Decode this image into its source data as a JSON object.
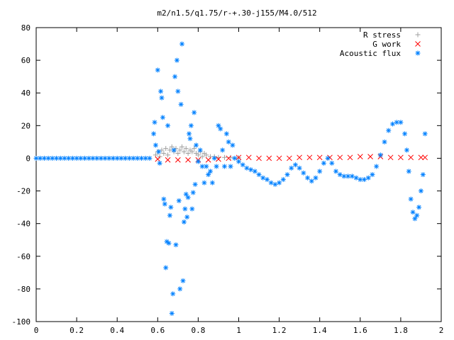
{
  "chart_data": {
    "type": "scatter",
    "title": "m2/n1.5/q1.75/r-+.30-j155/M4.0/512",
    "xlabel": "",
    "ylabel": "",
    "xlim": [
      0,
      2
    ],
    "ylim": [
      -100,
      80
    ],
    "xticks": [
      0,
      0.2,
      0.4,
      0.6,
      0.8,
      1,
      1.2,
      1.4,
      1.6,
      1.8,
      2
    ],
    "xtick_labels": [
      "0",
      "0.2",
      "0.4",
      "0.6",
      "0.8",
      "1",
      "1.2",
      "1.4",
      "1.6",
      "1.8",
      "2"
    ],
    "yticks": [
      -100,
      -80,
      -60,
      -40,
      -20,
      0,
      20,
      40,
      60,
      80
    ],
    "ytick_labels": [
      "-100",
      "-80",
      "-60",
      "-40",
      "-20",
      "0",
      "20",
      "40",
      "60",
      "80"
    ],
    "grid": false,
    "legend_position": "top-right",
    "series": [
      {
        "name": "R stress",
        "marker": "plus",
        "color": "#a0a0a0",
        "points": [
          [
            0.59,
            2
          ],
          [
            0.6,
            4
          ],
          [
            0.61,
            1
          ],
          [
            0.62,
            5
          ],
          [
            0.63,
            3
          ],
          [
            0.64,
            6
          ],
          [
            0.65,
            2
          ],
          [
            0.66,
            5
          ],
          [
            0.67,
            7
          ],
          [
            0.68,
            4
          ],
          [
            0.69,
            6
          ],
          [
            0.7,
            3
          ],
          [
            0.71,
            5
          ],
          [
            0.72,
            7
          ],
          [
            0.73,
            4
          ],
          [
            0.74,
            6
          ],
          [
            0.75,
            3
          ],
          [
            0.76,
            5
          ],
          [
            0.77,
            4
          ],
          [
            0.78,
            6
          ],
          [
            0.79,
            3
          ],
          [
            0.8,
            2
          ],
          [
            0.81,
            4
          ],
          [
            0.82,
            1
          ],
          [
            0.83,
            3
          ],
          [
            0.84,
            2
          ],
          [
            0.86,
            1
          ],
          [
            0.88,
            1
          ],
          [
            0.9,
            0.5
          ],
          [
            0.93,
            0.5
          ],
          [
            0.96,
            0.5
          ],
          [
            1.0,
            0.3
          ]
        ]
      },
      {
        "name": "G work",
        "marker": "cross",
        "color": "#ff0000",
        "points": [
          [
            0.6,
            -0.5
          ],
          [
            0.65,
            -1
          ],
          [
            0.7,
            -1
          ],
          [
            0.75,
            -1
          ],
          [
            0.8,
            -1
          ],
          [
            0.85,
            -1
          ],
          [
            0.9,
            -0.5
          ],
          [
            0.95,
            0
          ],
          [
            1.0,
            0.5
          ],
          [
            1.05,
            0.5
          ],
          [
            1.1,
            0
          ],
          [
            1.15,
            0
          ],
          [
            1.2,
            0
          ],
          [
            1.25,
            0
          ],
          [
            1.3,
            0.5
          ],
          [
            1.35,
            0.5
          ],
          [
            1.4,
            0.5
          ],
          [
            1.45,
            0.5
          ],
          [
            1.5,
            0.5
          ],
          [
            1.55,
            0.5
          ],
          [
            1.6,
            1
          ],
          [
            1.65,
            1
          ],
          [
            1.7,
            1
          ],
          [
            1.75,
            0.5
          ],
          [
            1.8,
            0.5
          ],
          [
            1.85,
            0.5
          ],
          [
            1.9,
            0.5
          ],
          [
            1.92,
            0.5
          ]
        ]
      },
      {
        "name": "Acoustic flux",
        "marker": "star",
        "color": "#0080ff",
        "points": [
          [
            0.0,
            0
          ],
          [
            0.02,
            0
          ],
          [
            0.04,
            0
          ],
          [
            0.06,
            0
          ],
          [
            0.08,
            0
          ],
          [
            0.1,
            0
          ],
          [
            0.12,
            0
          ],
          [
            0.14,
            0
          ],
          [
            0.16,
            0
          ],
          [
            0.18,
            0
          ],
          [
            0.2,
            0
          ],
          [
            0.22,
            0
          ],
          [
            0.24,
            0
          ],
          [
            0.26,
            0
          ],
          [
            0.28,
            0
          ],
          [
            0.3,
            0
          ],
          [
            0.32,
            0
          ],
          [
            0.34,
            0
          ],
          [
            0.36,
            0
          ],
          [
            0.38,
            0
          ],
          [
            0.4,
            0
          ],
          [
            0.42,
            0
          ],
          [
            0.44,
            0
          ],
          [
            0.46,
            0
          ],
          [
            0.48,
            0
          ],
          [
            0.5,
            0
          ],
          [
            0.52,
            0
          ],
          [
            0.54,
            0
          ],
          [
            0.56,
            0
          ],
          [
            0.58,
            15
          ],
          [
            0.585,
            22
          ],
          [
            0.59,
            8
          ],
          [
            0.6,
            54
          ],
          [
            0.605,
            4
          ],
          [
            0.61,
            -3
          ],
          [
            0.615,
            41
          ],
          [
            0.62,
            37
          ],
          [
            0.625,
            25
          ],
          [
            0.63,
            -25
          ],
          [
            0.635,
            -28
          ],
          [
            0.64,
            -67
          ],
          [
            0.645,
            -51
          ],
          [
            0.65,
            20
          ],
          [
            0.655,
            -52
          ],
          [
            0.66,
            -35
          ],
          [
            0.665,
            -30
          ],
          [
            0.67,
            -95
          ],
          [
            0.675,
            -83
          ],
          [
            0.68,
            5
          ],
          [
            0.685,
            50
          ],
          [
            0.69,
            -53
          ],
          [
            0.695,
            60
          ],
          [
            0.7,
            41
          ],
          [
            0.705,
            -26
          ],
          [
            0.71,
            -80
          ],
          [
            0.715,
            33
          ],
          [
            0.72,
            70
          ],
          [
            0.725,
            -75
          ],
          [
            0.73,
            -39
          ],
          [
            0.735,
            -31
          ],
          [
            0.74,
            -22
          ],
          [
            0.745,
            -36
          ],
          [
            0.75,
            -24
          ],
          [
            0.755,
            15
          ],
          [
            0.76,
            12
          ],
          [
            0.765,
            20
          ],
          [
            0.77,
            -31
          ],
          [
            0.775,
            -21
          ],
          [
            0.78,
            28
          ],
          [
            0.785,
            -16
          ],
          [
            0.79,
            8
          ],
          [
            0.8,
            -2
          ],
          [
            0.81,
            5
          ],
          [
            0.82,
            -5
          ],
          [
            0.83,
            -15
          ],
          [
            0.84,
            -5
          ],
          [
            0.85,
            -10
          ],
          [
            0.86,
            -8
          ],
          [
            0.87,
            -15
          ],
          [
            0.88,
            0
          ],
          [
            0.89,
            -5
          ],
          [
            0.9,
            20
          ],
          [
            0.91,
            18
          ],
          [
            0.92,
            5
          ],
          [
            0.93,
            -5
          ],
          [
            0.94,
            15
          ],
          [
            0.95,
            10
          ],
          [
            0.96,
            -5
          ],
          [
            0.97,
            8
          ],
          [
            0.98,
            0
          ],
          [
            1.0,
            -2
          ],
          [
            1.02,
            -4
          ],
          [
            1.04,
            -6
          ],
          [
            1.06,
            -7
          ],
          [
            1.08,
            -8
          ],
          [
            1.1,
            -10
          ],
          [
            1.12,
            -12
          ],
          [
            1.14,
            -13
          ],
          [
            1.16,
            -15
          ],
          [
            1.18,
            -16
          ],
          [
            1.2,
            -15
          ],
          [
            1.22,
            -13
          ],
          [
            1.24,
            -10
          ],
          [
            1.26,
            -6
          ],
          [
            1.28,
            -4
          ],
          [
            1.3,
            -6
          ],
          [
            1.32,
            -9
          ],
          [
            1.34,
            -12
          ],
          [
            1.36,
            -14
          ],
          [
            1.38,
            -12
          ],
          [
            1.4,
            -8
          ],
          [
            1.42,
            -3
          ],
          [
            1.44,
            0
          ],
          [
            1.46,
            -3
          ],
          [
            1.48,
            -8
          ],
          [
            1.5,
            -10
          ],
          [
            1.52,
            -11
          ],
          [
            1.54,
            -11
          ],
          [
            1.56,
            -11
          ],
          [
            1.58,
            -12
          ],
          [
            1.6,
            -13
          ],
          [
            1.62,
            -13
          ],
          [
            1.64,
            -12
          ],
          [
            1.66,
            -10
          ],
          [
            1.68,
            -5
          ],
          [
            1.7,
            2
          ],
          [
            1.72,
            10
          ],
          [
            1.74,
            17
          ],
          [
            1.76,
            21
          ],
          [
            1.78,
            22
          ],
          [
            1.8,
            22
          ],
          [
            1.82,
            15
          ],
          [
            1.83,
            5
          ],
          [
            1.84,
            -8
          ],
          [
            1.85,
            -25
          ],
          [
            1.86,
            -33
          ],
          [
            1.87,
            -37
          ],
          [
            1.88,
            -35
          ],
          [
            1.89,
            -30
          ],
          [
            1.9,
            -20
          ],
          [
            1.91,
            -10
          ],
          [
            1.92,
            15
          ]
        ]
      }
    ]
  }
}
